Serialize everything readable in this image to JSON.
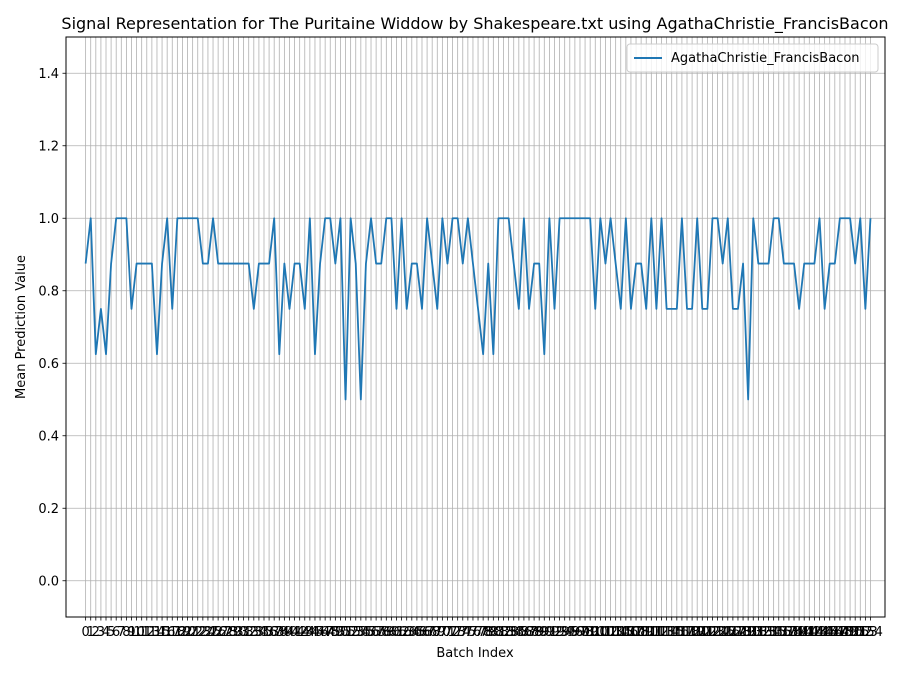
{
  "chart_data": {
    "type": "line",
    "title": "Signal Representation for The Puritaine Widdow by Shakespeare.txt using AgathaChristie_FrancisBacon",
    "xlabel": "Batch Index",
    "ylabel": "Mean Prediction Value",
    "ylim": [
      -0.1,
      1.5
    ],
    "xlim": [
      -3.85,
      156.85
    ],
    "yticks": [
      "0.0",
      "0.2",
      "0.4",
      "0.6",
      "0.8",
      "1.0",
      "1.2",
      "1.4"
    ],
    "grid": true,
    "legend_position": "top-right",
    "series_color": "#1f77b4",
    "series": [
      {
        "name": "AgathaChristie_FrancisBacon",
        "values": [
          0.875,
          1.0,
          0.625,
          0.75,
          0.625,
          0.875,
          1.0,
          1.0,
          1.0,
          0.75,
          0.875,
          0.875,
          0.875,
          0.875,
          0.625,
          0.875,
          1.0,
          0.75,
          1.0,
          1.0,
          1.0,
          1.0,
          1.0,
          0.875,
          0.875,
          1.0,
          0.875,
          0.875,
          0.875,
          0.875,
          0.875,
          0.875,
          0.875,
          0.75,
          0.875,
          0.875,
          0.875,
          1.0,
          0.625,
          0.875,
          0.75,
          0.875,
          0.875,
          0.75,
          1.0,
          0.625,
          0.875,
          1.0,
          1.0,
          0.875,
          1.0,
          0.5,
          1.0,
          0.875,
          0.5,
          0.875,
          1.0,
          0.875,
          0.875,
          1.0,
          1.0,
          0.75,
          1.0,
          0.75,
          0.875,
          0.875,
          0.75,
          1.0,
          0.875,
          0.75,
          1.0,
          0.875,
          1.0,
          1.0,
          0.875,
          1.0,
          0.875,
          0.75,
          0.625,
          0.875,
          0.625,
          1.0,
          1.0,
          1.0,
          0.875,
          0.75,
          1.0,
          0.75,
          0.875,
          0.875,
          0.625,
          1.0,
          0.75,
          1.0,
          1.0,
          1.0,
          1.0,
          1.0,
          1.0,
          1.0,
          0.75,
          1.0,
          0.875,
          1.0,
          0.875,
          0.75,
          1.0,
          0.75,
          0.875,
          0.875,
          0.75,
          1.0,
          0.75,
          1.0,
          0.75,
          0.75,
          0.75,
          1.0,
          0.75,
          0.75,
          1.0,
          0.75,
          0.75,
          1.0,
          1.0,
          0.875,
          1.0,
          0.75,
          0.75,
          0.875,
          0.5,
          1.0,
          0.875,
          0.875,
          0.875,
          1.0,
          1.0,
          0.875,
          0.875,
          0.875,
          0.75,
          0.875,
          0.875,
          0.875,
          1.0,
          0.75,
          0.875,
          0.875,
          1.0,
          1.0,
          1.0,
          0.875,
          1.0,
          0.75,
          1.0
        ]
      }
    ]
  }
}
